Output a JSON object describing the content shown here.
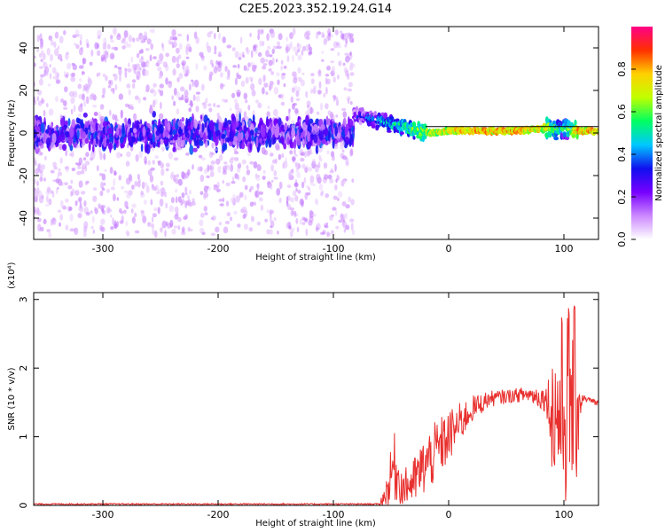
{
  "title": "C2E5.2023.352.19.24.G14",
  "chart_data": [
    {
      "type": "heatmap",
      "xlabel": "Height of straight line (km)",
      "ylabel": "Frequency (Hz)",
      "xlim": [
        -360,
        130
      ],
      "ylim": [
        -50,
        50
      ],
      "xticks": [
        -300,
        -200,
        -100,
        0,
        100
      ],
      "yticks": [
        -40,
        -20,
        0,
        20,
        40
      ],
      "colorbar": {
        "label": "Normalized spectral amplitude",
        "range": [
          0,
          1
        ],
        "ticks": [
          0.0,
          0.2,
          0.4,
          0.6,
          0.8
        ],
        "colors": [
          "#ffffff",
          "#cc88ff",
          "#7700ff",
          "#1010ee",
          "#00c8ff",
          "#00ff60",
          "#c0ff00",
          "#ffd000",
          "#ff3000",
          "#ff0088"
        ]
      },
      "noise_region": {
        "x_range": [
          -360,
          -82
        ],
        "f_center": 0,
        "f_spread": 48,
        "core_half_width": 8
      },
      "signal_track": [
        {
          "x": -82,
          "f": 8,
          "amp": 0.35
        },
        {
          "x": -70,
          "f": 7,
          "amp": 0.45
        },
        {
          "x": -55,
          "f": 5,
          "amp": 0.55
        },
        {
          "x": -40,
          "f": 3,
          "amp": 0.65
        },
        {
          "x": -25,
          "f": 1,
          "amp": 0.75
        },
        {
          "x": -15,
          "f": 0,
          "amp": 0.8
        },
        {
          "x": 0,
          "f": 1,
          "amp": 0.85
        },
        {
          "x": 30,
          "f": 1,
          "amp": 0.9
        },
        {
          "x": 60,
          "f": 1,
          "amp": 0.9
        },
        {
          "x": 80,
          "f": 2,
          "amp": 0.85
        },
        {
          "x": 100,
          "f": 2,
          "amp": 0.6
        },
        {
          "x": 112,
          "f": 1,
          "amp": 0.9
        },
        {
          "x": 130,
          "f": 1,
          "amp": 0.9
        }
      ],
      "reference_line_f": 3
    },
    {
      "type": "line",
      "xlabel": "Height of straight line (km)",
      "ylabel": "SNR (10 * v/v)",
      "y_multiplier": "(x10⁴)",
      "xlim": [
        -360,
        130
      ],
      "ylim": [
        0,
        3.1
      ],
      "xticks": [
        -300,
        -200,
        -100,
        0,
        100
      ],
      "yticks": [
        0,
        1,
        2,
        3
      ],
      "series": [
        {
          "color": "#e8302e",
          "envelope": [
            {
              "x": -360,
              "base": 0.02,
              "amp": 0.01
            },
            {
              "x": -60,
              "base": 0.02,
              "amp": 0.01
            },
            {
              "x": -52,
              "base": 0.25,
              "amp": 0.3
            },
            {
              "x": -48,
              "base": 0.6,
              "amp": 0.55
            },
            {
              "x": -40,
              "base": 0.25,
              "amp": 0.25
            },
            {
              "x": -30,
              "base": 0.35,
              "amp": 0.35
            },
            {
              "x": -20,
              "base": 0.6,
              "amp": 0.45
            },
            {
              "x": -10,
              "base": 0.8,
              "amp": 0.45
            },
            {
              "x": 0,
              "base": 1.0,
              "amp": 0.4
            },
            {
              "x": 10,
              "base": 1.2,
              "amp": 0.3
            },
            {
              "x": 20,
              "base": 1.4,
              "amp": 0.2
            },
            {
              "x": 35,
              "base": 1.55,
              "amp": 0.12
            },
            {
              "x": 55,
              "base": 1.6,
              "amp": 0.1
            },
            {
              "x": 70,
              "base": 1.62,
              "amp": 0.12
            },
            {
              "x": 85,
              "base": 1.55,
              "amp": 0.2
            },
            {
              "x": 92,
              "base": 1.3,
              "amp": 1.2
            },
            {
              "x": 100,
              "base": 1.4,
              "amp": 1.5
            },
            {
              "x": 106,
              "base": 1.6,
              "amp": 1.5
            },
            {
              "x": 112,
              "base": 1.55,
              "amp": 1.2
            },
            {
              "x": 116,
              "base": 1.57,
              "amp": 0.05
            },
            {
              "x": 130,
              "base": 1.48,
              "amp": 0.05
            }
          ]
        }
      ]
    }
  ]
}
